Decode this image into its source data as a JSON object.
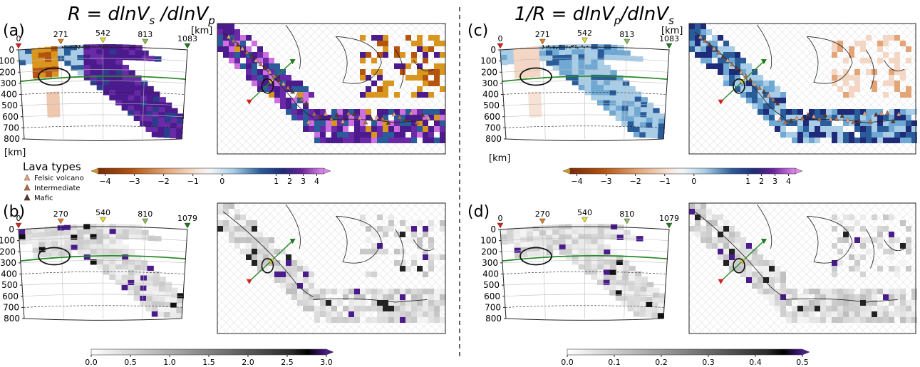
{
  "titles": {
    "left": "R = dlnV",
    "left_sub1": "s",
    "left_mid": " /dlnV",
    "left_sub2": "p",
    "right": "1/R = dlnV",
    "right_sub1": "p",
    "right_mid": "/dlnV",
    "right_sub2": "s"
  },
  "panel_labels": [
    "(a)",
    "(b)",
    "(c)",
    "(d)"
  ],
  "units": {
    "km": "[km]"
  },
  "depth_ticks": [
    "0",
    "100",
    "200",
    "300",
    "400",
    "500",
    "600",
    "700",
    "800"
  ],
  "distance_ticks_top": [
    "0",
    "271",
    "542",
    "813",
    "1083"
  ],
  "distance_ticks_bottom": [
    "0",
    "270",
    "540",
    "810",
    "1079"
  ],
  "legend": {
    "title": "Lava types",
    "items": [
      "Felsic volcano",
      "Intermediate",
      "Mafic"
    ],
    "colors": [
      "#e0a080",
      "#b07050",
      "#5a3a2a"
    ]
  },
  "colorbars": {
    "ratio_ticks": [
      "−4",
      "−3",
      "−2",
      "−1",
      "0",
      "1",
      "2",
      "3",
      "4"
    ],
    "std_left_ticks": [
      "0.0",
      "0.5",
      "1.0",
      "1.5",
      "2.0",
      "2.5",
      "3.0"
    ],
    "std_right_ticks": [
      "0.0",
      "0.1",
      "0.2",
      "0.3",
      "0.4",
      "0.5"
    ]
  },
  "colors": {
    "purple": "#4b1a8c",
    "magenta": "#d070e0",
    "blue": "#2a5c9a",
    "lightblue": "#a9cde6",
    "orange": "#c86b1a",
    "brown": "#8a3a10",
    "green": "#2a8a2a",
    "grid": "#bbbbbb"
  },
  "chart_data": [
    {
      "type": "heatmap",
      "panel": "(a)",
      "title": "R = dlnVs /dlnVp",
      "ylabel": "[km]",
      "x_ticks": [
        0,
        271,
        542,
        813,
        1083
      ],
      "y_ticks": [
        0,
        100,
        200,
        300,
        400,
        500,
        600,
        700,
        800
      ],
      "colorbar_range": [
        -4,
        4
      ],
      "colorbar_ticks": [
        -4,
        -3,
        -2,
        -1,
        0,
        1,
        2,
        3,
        4
      ]
    },
    {
      "type": "heatmap",
      "panel": "(b)",
      "x_ticks": [
        0,
        270,
        540,
        810,
        1079
      ],
      "y_ticks": [
        0,
        100,
        200,
        300,
        400,
        500,
        600,
        700,
        800
      ],
      "colorbar_range": [
        0.0,
        3.0
      ],
      "colorbar_ticks": [
        0.0,
        0.5,
        1.0,
        1.5,
        2.0,
        2.5,
        3.0
      ]
    },
    {
      "type": "heatmap",
      "panel": "(c)",
      "title": "1/R = dlnVp/dlnVs",
      "ylabel": "[km]",
      "x_ticks": [
        0,
        271,
        542,
        813,
        1083
      ],
      "y_ticks": [
        0,
        100,
        200,
        300,
        400,
        500,
        600,
        700,
        800
      ],
      "colorbar_range": [
        -4,
        4
      ],
      "colorbar_ticks": [
        -4,
        -3,
        -2,
        -1,
        0,
        1,
        2,
        3,
        4
      ]
    },
    {
      "type": "heatmap",
      "panel": "(d)",
      "x_ticks": [
        0,
        270,
        540,
        810,
        1079
      ],
      "y_ticks": [
        0,
        100,
        200,
        300,
        400,
        500,
        600,
        700,
        800
      ],
      "colorbar_range": [
        0.0,
        0.5
      ],
      "colorbar_ticks": [
        0.0,
        0.1,
        0.2,
        0.3,
        0.4,
        0.5
      ]
    }
  ]
}
